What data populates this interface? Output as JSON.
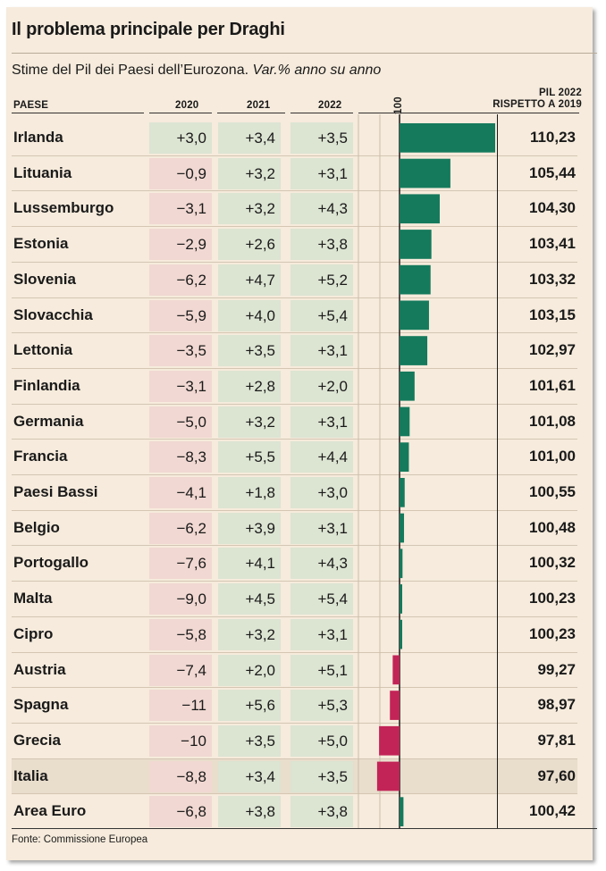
{
  "title": "Il problema principale per Draghi",
  "subtitle_main": "Stime del Pil dei Paesi dell’Eurozona.",
  "subtitle_italic": "Var.% anno su anno",
  "headers": {
    "country": "PAESE",
    "y2020": "2020",
    "y2021": "2021",
    "y2022": "2022",
    "baseline": "100",
    "pil_line1": "PIL 2022",
    "pil_line2": "RISPETTO A 2019"
  },
  "source": "Fonte: Commissione Europea",
  "colors": {
    "positive_bar": "#157a5c",
    "negative_bar": "#c22457",
    "neg_cell": "#f1d8d2",
    "pos_cell": "#dce4d2"
  },
  "chart_data": {
    "type": "table",
    "baseline": 100,
    "xlim": [
      97.4,
      110.4
    ],
    "highlight": "Italia",
    "rows": [
      {
        "country": "Irlanda",
        "v2020": "+3,0",
        "v2021": "+3,4",
        "v2022": "+3,5",
        "pil": "110,23",
        "pil_value": 110.23
      },
      {
        "country": "Lituania",
        "v2020": "−0,9",
        "v2021": "+3,2",
        "v2022": "+3,1",
        "pil": "105,44",
        "pil_value": 105.44
      },
      {
        "country": "Lussemburgo",
        "v2020": "−3,1",
        "v2021": "+3,2",
        "v2022": "+4,3",
        "pil": "104,30",
        "pil_value": 104.3
      },
      {
        "country": "Estonia",
        "v2020": "−2,9",
        "v2021": "+2,6",
        "v2022": "+3,8",
        "pil": "103,41",
        "pil_value": 103.41
      },
      {
        "country": "Slovenia",
        "v2020": "−6,2",
        "v2021": "+4,7",
        "v2022": "+5,2",
        "pil": "103,32",
        "pil_value": 103.32
      },
      {
        "country": "Slovacchia",
        "v2020": "−5,9",
        "v2021": "+4,0",
        "v2022": "+5,4",
        "pil": "103,15",
        "pil_value": 103.15
      },
      {
        "country": "Lettonia",
        "v2020": "−3,5",
        "v2021": "+3,5",
        "v2022": "+3,1",
        "pil": "102,97",
        "pil_value": 102.97
      },
      {
        "country": "Finlandia",
        "v2020": "−3,1",
        "v2021": "+2,8",
        "v2022": "+2,0",
        "pil": "101,61",
        "pil_value": 101.61
      },
      {
        "country": "Germania",
        "v2020": "−5,0",
        "v2021": "+3,2",
        "v2022": "+3,1",
        "pil": "101,08",
        "pil_value": 101.08
      },
      {
        "country": "Francia",
        "v2020": "−8,3",
        "v2021": "+5,5",
        "v2022": "+4,4",
        "pil": "101,00",
        "pil_value": 101.0
      },
      {
        "country": "Paesi Bassi",
        "v2020": "−4,1",
        "v2021": "+1,8",
        "v2022": "+3,0",
        "pil": "100,55",
        "pil_value": 100.55
      },
      {
        "country": "Belgio",
        "v2020": "−6,2",
        "v2021": "+3,9",
        "v2022": "+3,1",
        "pil": "100,48",
        "pil_value": 100.48
      },
      {
        "country": "Portogallo",
        "v2020": "−7,6",
        "v2021": "+4,1",
        "v2022": "+4,3",
        "pil": "100,32",
        "pil_value": 100.32
      },
      {
        "country": "Malta",
        "v2020": "−9,0",
        "v2021": "+4,5",
        "v2022": "+5,4",
        "pil": "100,23",
        "pil_value": 100.23
      },
      {
        "country": "Cipro",
        "v2020": "−5,8",
        "v2021": "+3,2",
        "v2022": "+3,1",
        "pil": "100,23",
        "pil_value": 100.23
      },
      {
        "country": "Austria",
        "v2020": "−7,4",
        "v2021": "+2,0",
        "v2022": "+5,1",
        "pil": "99,27",
        "pil_value": 99.27
      },
      {
        "country": "Spagna",
        "v2020": "−11",
        "v2021": "+5,6",
        "v2022": "+5,3",
        "pil": "98,97",
        "pil_value": 98.97
      },
      {
        "country": "Grecia",
        "v2020": "−10",
        "v2021": "+3,5",
        "v2022": "+5,0",
        "pil": "97,81",
        "pil_value": 97.81
      },
      {
        "country": "Italia",
        "v2020": "−8,8",
        "v2021": "+3,4",
        "v2022": "+3,5",
        "pil": "97,60",
        "pil_value": 97.6
      },
      {
        "country": "Area Euro",
        "v2020": "−6,8",
        "v2021": "+3,8",
        "v2022": "+3,8",
        "pil": "100,42",
        "pil_value": 100.42
      }
    ]
  }
}
